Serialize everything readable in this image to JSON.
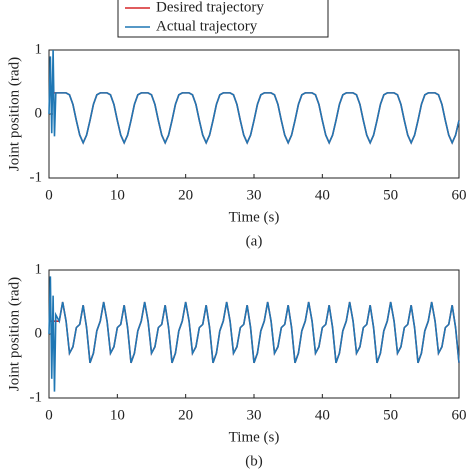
{
  "chart_data": [
    {
      "type": "line",
      "caption": "(a)",
      "xlabel": "Time (s)",
      "ylabel": "Joint position (rad)",
      "xlim": [
        0,
        60
      ],
      "xticks": [
        0,
        10,
        20,
        30,
        40,
        50,
        60
      ],
      "ylim": [
        -1,
        1
      ],
      "yticks": [
        -1,
        0,
        1
      ],
      "x": [
        0,
        0.2,
        0.4,
        0.6,
        0.8,
        1,
        1.5,
        2,
        2.5,
        3,
        3.5,
        4,
        4.5,
        5,
        5.5,
        6,
        6.5,
        7,
        7.5,
        8,
        8.5,
        9,
        9.5,
        10,
        10.5,
        11,
        11.5,
        12,
        12.5,
        13,
        13.5,
        14,
        14.5,
        15,
        15.5,
        16,
        16.5,
        17,
        17.5,
        18,
        18.5,
        19,
        19.5,
        20,
        20.5,
        21,
        21.5,
        22,
        22.5,
        23,
        23.5,
        24,
        24.5,
        25,
        25.5,
        26,
        26.5,
        27,
        27.5,
        28,
        28.5,
        29,
        29.5,
        30,
        30.5,
        31,
        31.5,
        32,
        32.5,
        33,
        33.5,
        34,
        34.5,
        35,
        35.5,
        36,
        36.5,
        37,
        37.5,
        38,
        38.5,
        39,
        39.5,
        40,
        40.5,
        41,
        41.5,
        42,
        42.5,
        43,
        43.5,
        44,
        44.5,
        45,
        45.5,
        46,
        46.5,
        47,
        47.5,
        48,
        48.5,
        49,
        49.5,
        50,
        50.5,
        51,
        51.5,
        52,
        52.5,
        53,
        53.5,
        54,
        54.5,
        55,
        55.5,
        56,
        56.5,
        57,
        57.5,
        58,
        58.5,
        59,
        59.5,
        60
      ],
      "series": [
        {
          "name": "Desired trajectory",
          "color": "#d62728",
          "values": [
            0.33,
            0.33,
            0.33,
            0.33,
            0.33,
            0.33,
            0.33,
            0.33,
            0.33,
            0.3,
            0.15,
            -0.1,
            -0.33,
            -0.45,
            -0.33,
            -0.1,
            0.15,
            0.3,
            0.33,
            0.33,
            0.33,
            0.3,
            0.15,
            -0.1,
            -0.33,
            -0.45,
            -0.33,
            -0.1,
            0.15,
            0.3,
            0.33,
            0.33,
            0.33,
            0.3,
            0.15,
            -0.1,
            -0.33,
            -0.45,
            -0.33,
            -0.1,
            0.15,
            0.3,
            0.33,
            0.33,
            0.33,
            0.3,
            0.15,
            -0.1,
            -0.33,
            -0.45,
            -0.33,
            -0.1,
            0.15,
            0.3,
            0.33,
            0.33,
            0.33,
            0.3,
            0.15,
            -0.1,
            -0.33,
            -0.45,
            -0.33,
            -0.1,
            0.15,
            0.3,
            0.33,
            0.33,
            0.33,
            0.3,
            0.15,
            -0.1,
            -0.33,
            -0.45,
            -0.33,
            -0.1,
            0.15,
            0.3,
            0.33,
            0.33,
            0.33,
            0.3,
            0.15,
            -0.1,
            -0.33,
            -0.45,
            -0.33,
            -0.1,
            0.15,
            0.3,
            0.33,
            0.33,
            0.33,
            0.3,
            0.15,
            -0.1,
            -0.33,
            -0.45,
            -0.33,
            -0.1,
            0.15,
            0.3,
            0.33,
            0.33,
            0.33,
            0.3,
            0.15,
            -0.1,
            -0.33,
            -0.45,
            -0.33,
            -0.1,
            0.15,
            0.3,
            0.33,
            0.33,
            0.33,
            0.3,
            0.15,
            -0.1,
            -0.33,
            -0.45,
            -0.33,
            -0.1
          ]
        },
        {
          "name": "Actual trajectory",
          "color": "#1f77b4",
          "values": [
            0,
            0.9,
            -0.3,
            1.0,
            -0.35,
            0.33,
            0.33,
            0.33,
            0.33,
            0.3,
            0.15,
            -0.1,
            -0.33,
            -0.45,
            -0.33,
            -0.1,
            0.15,
            0.3,
            0.33,
            0.33,
            0.33,
            0.3,
            0.15,
            -0.1,
            -0.33,
            -0.45,
            -0.33,
            -0.1,
            0.15,
            0.3,
            0.33,
            0.33,
            0.33,
            0.3,
            0.15,
            -0.1,
            -0.33,
            -0.45,
            -0.33,
            -0.1,
            0.15,
            0.3,
            0.33,
            0.33,
            0.33,
            0.3,
            0.15,
            -0.1,
            -0.33,
            -0.45,
            -0.33,
            -0.1,
            0.15,
            0.3,
            0.33,
            0.33,
            0.33,
            0.3,
            0.15,
            -0.1,
            -0.33,
            -0.45,
            -0.33,
            -0.1,
            0.15,
            0.3,
            0.33,
            0.33,
            0.33,
            0.3,
            0.15,
            -0.1,
            -0.33,
            -0.45,
            -0.33,
            -0.1,
            0.15,
            0.3,
            0.33,
            0.33,
            0.33,
            0.3,
            0.15,
            -0.1,
            -0.33,
            -0.45,
            -0.33,
            -0.1,
            0.15,
            0.3,
            0.33,
            0.33,
            0.33,
            0.3,
            0.15,
            -0.1,
            -0.33,
            -0.45,
            -0.33,
            -0.1,
            0.15,
            0.3,
            0.33,
            0.33,
            0.33,
            0.3,
            0.15,
            -0.1,
            -0.33,
            -0.45,
            -0.33,
            -0.1,
            0.15,
            0.3,
            0.33,
            0.33,
            0.33,
            0.3,
            0.15,
            -0.1,
            -0.33,
            -0.45,
            -0.33,
            -0.1
          ]
        }
      ]
    },
    {
      "type": "line",
      "caption": "(b)",
      "xlabel": "Time (s)",
      "ylabel": "Joint position (rad)",
      "xlim": [
        0,
        60
      ],
      "xticks": [
        0,
        10,
        20,
        30,
        40,
        50,
        60
      ],
      "ylim": [
        -1,
        1
      ],
      "yticks": [
        -1,
        0,
        1
      ],
      "x": [
        0,
        0.2,
        0.4,
        0.6,
        0.8,
        1,
        1.5,
        2,
        2.5,
        3,
        3.5,
        4,
        4.5,
        5,
        5.5,
        6,
        6.5,
        7,
        7.5,
        8,
        8.5,
        9,
        9.5,
        10,
        10.5,
        11,
        11.5,
        12,
        12.5,
        13,
        13.5,
        14,
        14.5,
        15,
        15.5,
        16,
        16.5,
        17,
        17.5,
        18,
        18.5,
        19,
        19.5,
        20,
        20.5,
        21,
        21.5,
        22,
        22.5,
        23,
        23.5,
        24,
        24.5,
        25,
        25.5,
        26,
        26.5,
        27,
        27.5,
        28,
        28.5,
        29,
        29.5,
        30,
        30.5,
        31,
        31.5,
        32,
        32.5,
        33,
        33.5,
        34,
        34.5,
        35,
        35.5,
        36,
        36.5,
        37,
        37.5,
        38,
        38.5,
        39,
        39.5,
        40,
        40.5,
        41,
        41.5,
        42,
        42.5,
        43,
        43.5,
        44,
        44.5,
        45,
        45.5,
        46,
        46.5,
        47,
        47.5,
        48,
        48.5,
        49,
        49.5,
        50,
        50.5,
        51,
        51.5,
        52,
        52.5,
        53,
        53.5,
        54,
        54.5,
        55,
        55.5,
        56,
        56.5,
        57,
        57.5,
        58,
        58.5,
        59,
        59.5,
        60
      ],
      "series": [
        {
          "name": "Desired trajectory",
          "color": "#d62728",
          "values": [
            0.2,
            0.2,
            0.2,
            0.2,
            0.2,
            0.2,
            0.2,
            0.5,
            0.2,
            -0.3,
            -0.2,
            0.1,
            0.15,
            0.45,
            0.1,
            -0.45,
            -0.3,
            0.05,
            0.2,
            0.5,
            0.2,
            -0.3,
            -0.2,
            0.1,
            0.15,
            0.45,
            0.1,
            -0.45,
            -0.3,
            0.05,
            0.2,
            0.5,
            0.2,
            -0.3,
            -0.2,
            0.1,
            0.15,
            0.45,
            0.1,
            -0.45,
            -0.3,
            0.05,
            0.2,
            0.5,
            0.2,
            -0.3,
            -0.2,
            0.1,
            0.15,
            0.45,
            0.1,
            -0.45,
            -0.3,
            0.05,
            0.2,
            0.5,
            0.2,
            -0.3,
            -0.2,
            0.1,
            0.15,
            0.45,
            0.1,
            -0.45,
            -0.3,
            0.05,
            0.2,
            0.5,
            0.2,
            -0.3,
            -0.2,
            0.1,
            0.15,
            0.45,
            0.1,
            -0.45,
            -0.3,
            0.05,
            0.2,
            0.5,
            0.2,
            -0.3,
            -0.2,
            0.1,
            0.15,
            0.45,
            0.1,
            -0.45,
            -0.3,
            0.05,
            0.2,
            0.5,
            0.2,
            -0.3,
            -0.2,
            0.1,
            0.15,
            0.45,
            0.1,
            -0.45,
            -0.3,
            0.05,
            0.2,
            0.5,
            0.2,
            -0.3,
            -0.2,
            0.1,
            0.15,
            0.45,
            0.1,
            -0.45,
            -0.3,
            0.05,
            0.2,
            0.5,
            0.2,
            -0.3,
            -0.2,
            0.1,
            0.15,
            0.45,
            0.1,
            -0.45
          ]
        },
        {
          "name": "Actual trajectory",
          "color": "#1f77b4",
          "values": [
            0,
            0.9,
            -0.7,
            0.6,
            -0.9,
            0.3,
            0.2,
            0.5,
            0.2,
            -0.3,
            -0.2,
            0.1,
            0.15,
            0.45,
            0.1,
            -0.45,
            -0.3,
            0.05,
            0.2,
            0.5,
            0.2,
            -0.3,
            -0.2,
            0.1,
            0.15,
            0.45,
            0.1,
            -0.45,
            -0.3,
            0.05,
            0.2,
            0.5,
            0.2,
            -0.3,
            -0.2,
            0.1,
            0.15,
            0.45,
            0.1,
            -0.45,
            -0.3,
            0.05,
            0.2,
            0.5,
            0.2,
            -0.3,
            -0.2,
            0.1,
            0.15,
            0.45,
            0.1,
            -0.45,
            -0.3,
            0.05,
            0.2,
            0.5,
            0.2,
            -0.3,
            -0.2,
            0.1,
            0.15,
            0.45,
            0.1,
            -0.45,
            -0.3,
            0.05,
            0.2,
            0.5,
            0.2,
            -0.3,
            -0.2,
            0.1,
            0.15,
            0.45,
            0.1,
            -0.45,
            -0.3,
            0.05,
            0.2,
            0.5,
            0.2,
            -0.3,
            -0.2,
            0.1,
            0.15,
            0.45,
            0.1,
            -0.45,
            -0.3,
            0.05,
            0.2,
            0.5,
            0.2,
            -0.3,
            -0.2,
            0.1,
            0.15,
            0.45,
            0.1,
            -0.45,
            -0.3,
            0.05,
            0.2,
            0.5,
            0.2,
            -0.3,
            -0.2,
            0.1,
            0.15,
            0.45,
            0.1,
            -0.45,
            -0.3,
            0.05,
            0.2,
            0.5,
            0.2,
            -0.3,
            -0.2,
            0.1,
            0.15,
            0.45,
            0.1,
            -0.45
          ]
        }
      ]
    }
  ]
}
